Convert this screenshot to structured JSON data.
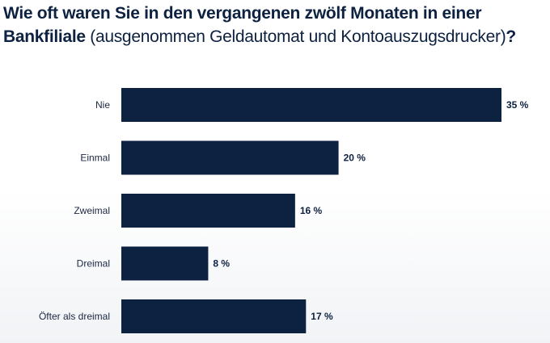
{
  "title": {
    "part1": "Wie oft waren Sie in den vergangenen zwölf Monaten in einer ",
    "part2": "Bankfiliale",
    "part3": " (ausgenommen Geldautomat und Kontoauszugsdrucker)",
    "part4": "?"
  },
  "chart_data": {
    "type": "bar",
    "orientation": "horizontal",
    "categories": [
      "Nie",
      "Einmal",
      "Zweimal",
      "Dreimal",
      "Öfter als dreimal"
    ],
    "values": [
      35,
      20,
      16,
      8,
      17
    ],
    "value_labels": [
      "35 %",
      "20 %",
      "16 %",
      "8 %",
      "17 %"
    ],
    "xlim": [
      0,
      35
    ],
    "grid": false,
    "bar_color": "#0d2140"
  }
}
